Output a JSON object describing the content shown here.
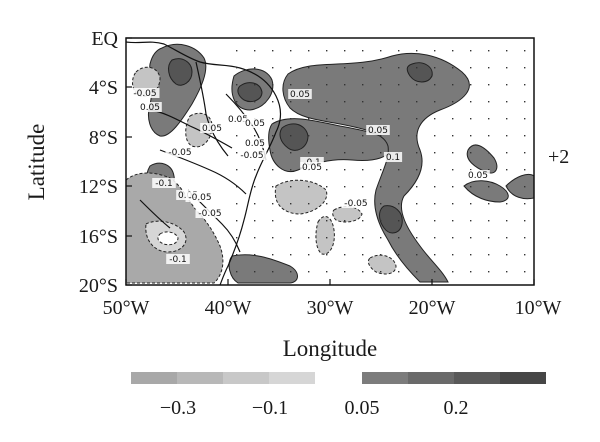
{
  "map": {
    "ylabel": "Latitude",
    "xlabel": "Longitude",
    "xticks": [
      "50°W",
      "40°W",
      "30°W",
      "20°W",
      "10°W"
    ],
    "yticks": [
      "EQ",
      "4°S",
      "8°S",
      "12°S",
      "16°S",
      "20°S"
    ],
    "side_label": "+2",
    "lon_range": [
      -50,
      -10
    ],
    "lat_range": [
      -20,
      0
    ],
    "contour_labels": [
      "0.05",
      "-0.05",
      "0.05",
      "0.05",
      "-0.05",
      "-0.05",
      "0.05",
      "-0.05",
      "-0.1",
      "0.05",
      "0.1",
      "0.05",
      "-0.1",
      "0.05",
      "-0.05",
      "0.05",
      "-0.05",
      "-0.1",
      "0.05",
      "0.05"
    ]
  },
  "colorbar": {
    "labels": [
      "−0.3",
      "−0.1",
      "0.05",
      "0.2"
    ],
    "negative_colors": [
      "#a8a8a8",
      "#b8b8b8",
      "#c8c8c8",
      "#d6d6d6"
    ],
    "positive_colors": [
      "#7c7c7c",
      "#6a6a6a",
      "#595959",
      "#464646"
    ]
  },
  "colors": {
    "positive_fill": "#7a7a7a",
    "strong_positive_fill": "#555555",
    "negative_fill": "#c4c4c4",
    "strong_negative_fill": "#a9a9a9",
    "contour": "#222222"
  }
}
